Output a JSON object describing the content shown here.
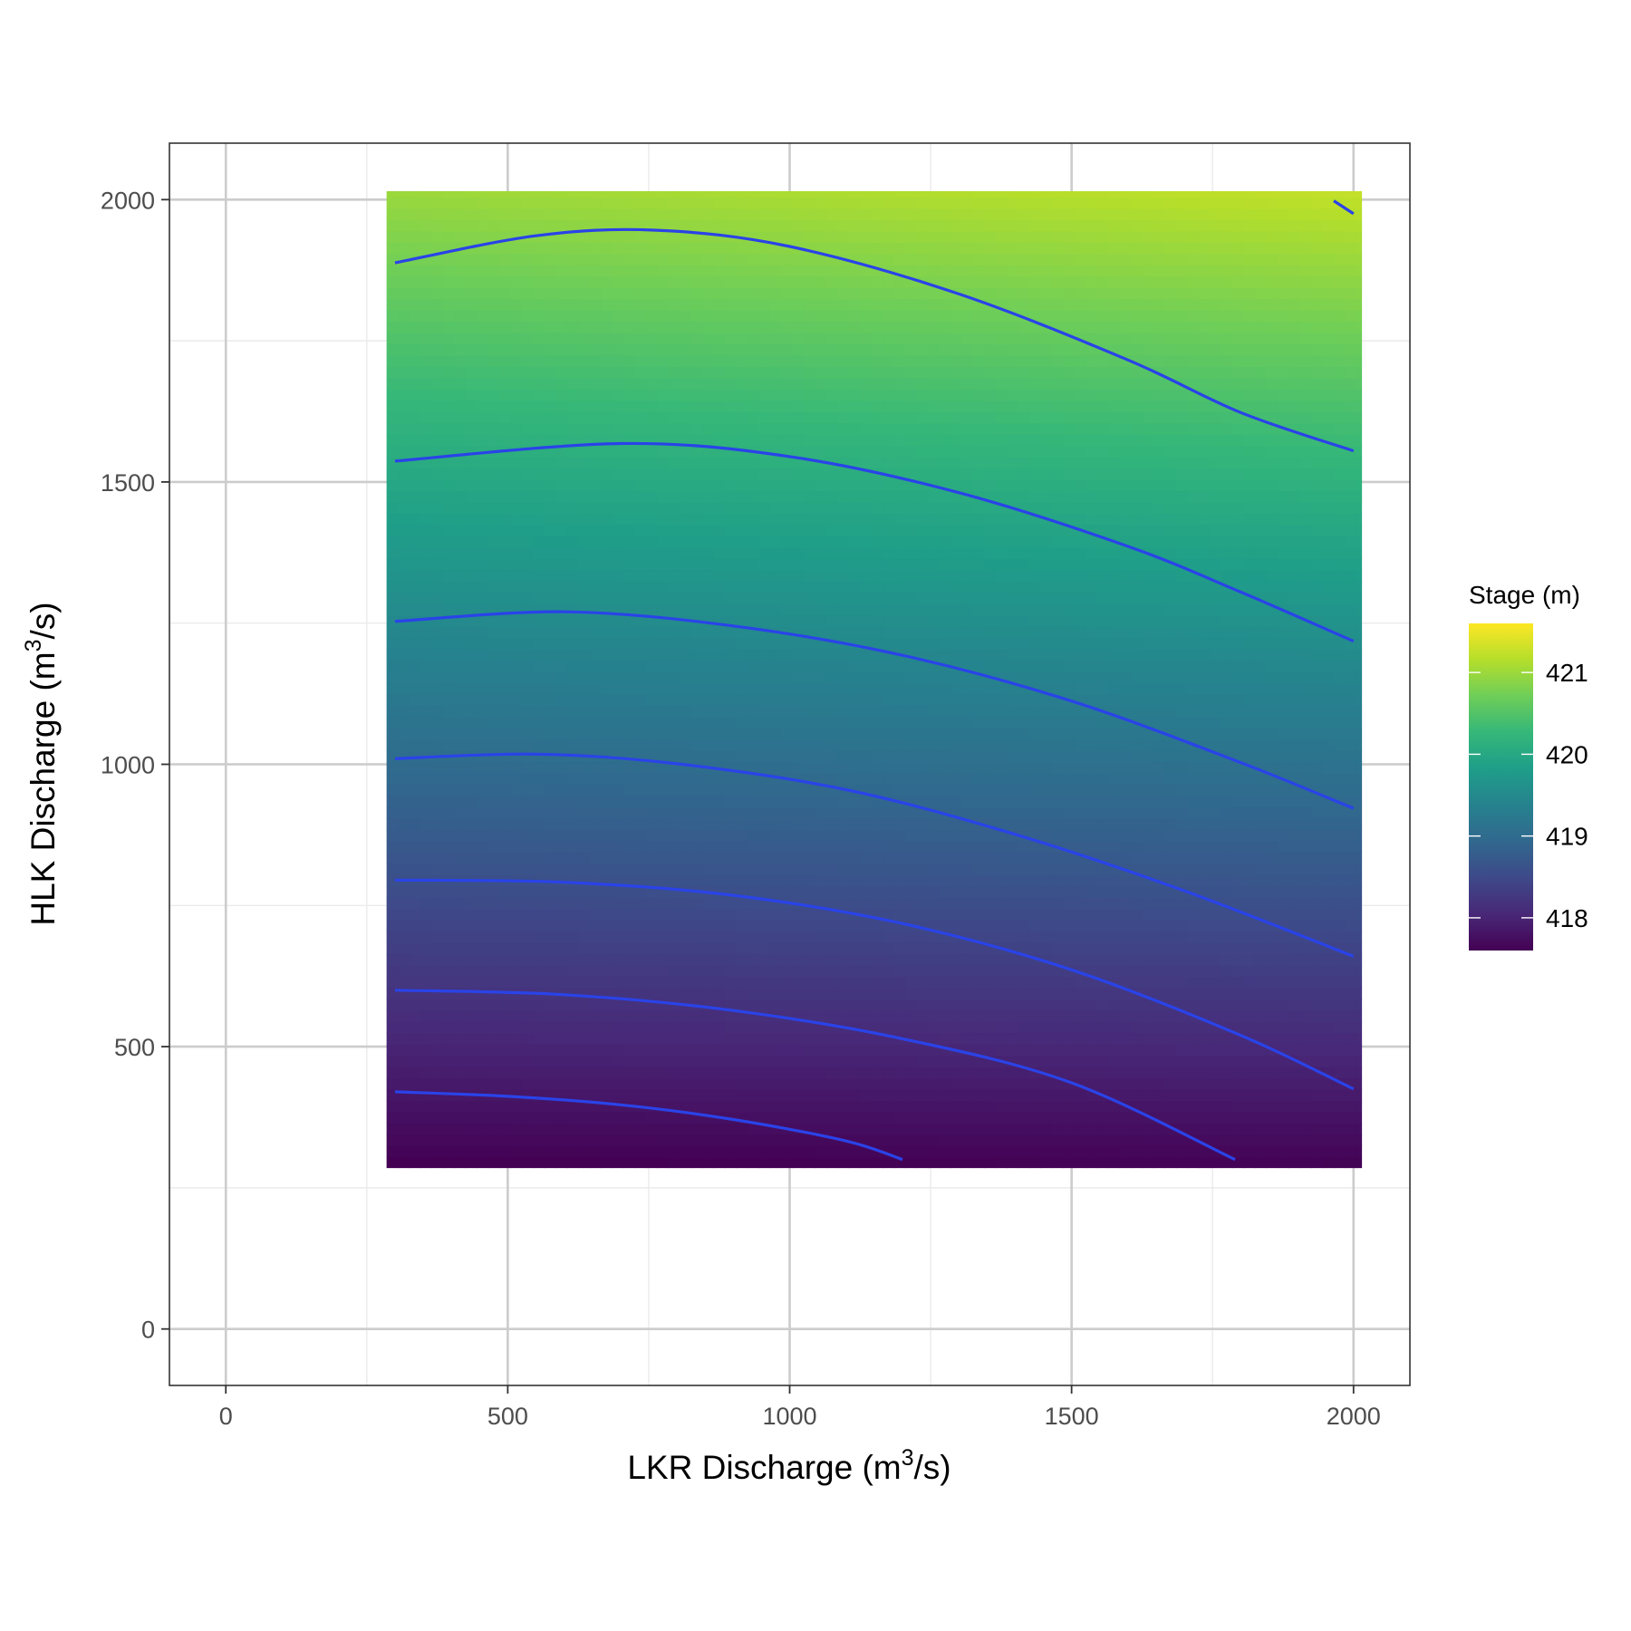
{
  "chart_data": {
    "type": "heatmap",
    "title": "",
    "xlabel": {
      "prefix": "LKR Discharge (m",
      "sup": "3",
      "suffix": "/s)"
    },
    "ylabel": {
      "prefix": "HLK Discharge (m",
      "sup": "3",
      "suffix": "/s)"
    },
    "xlim": [
      -100,
      2100
    ],
    "ylim": [
      -100,
      2100
    ],
    "x_ticks": [
      0,
      500,
      1000,
      1500,
      2000
    ],
    "y_ticks": [
      0,
      500,
      1000,
      1500,
      2000
    ],
    "x_tick_labels": [
      "0",
      "500",
      "1000",
      "1500",
      "2000"
    ],
    "y_tick_labels": [
      "0",
      "500",
      "1000",
      "1500",
      "2000"
    ],
    "grid": true,
    "raster_extent": {
      "x": [
        285,
        2015
      ],
      "y": [
        285,
        2015
      ]
    },
    "fill": {
      "variable": "Stage (m)",
      "palette": "viridis",
      "range": [
        417.6,
        421.6
      ],
      "model": "stage ≈ 417.6 + 0.00195·(HLK−300) + 0.000000075·LKR·(HLK−300) + small LKR term"
    },
    "contour_color": "#2a43e8",
    "contours": [
      {
        "points": [
          [
            300,
            420
          ],
          [
            500,
            412
          ],
          [
            700,
            397
          ],
          [
            900,
            371
          ],
          [
            1100,
            333
          ],
          [
            1200,
            300
          ]
        ]
      },
      {
        "points": [
          [
            300,
            600
          ],
          [
            600,
            592
          ],
          [
            900,
            564
          ],
          [
            1200,
            514
          ],
          [
            1500,
            436
          ],
          [
            1790,
            300
          ]
        ]
      },
      {
        "points": [
          [
            300,
            795
          ],
          [
            600,
            791
          ],
          [
            900,
            768
          ],
          [
            1200,
            718
          ],
          [
            1500,
            636
          ],
          [
            1800,
            520
          ],
          [
            2000,
            425
          ]
        ]
      },
      {
        "points": [
          [
            300,
            1010
          ],
          [
            550,
            1018
          ],
          [
            800,
            1001
          ],
          [
            1100,
            955
          ],
          [
            1400,
            876
          ],
          [
            1700,
            776
          ],
          [
            2000,
            660
          ]
        ]
      },
      {
        "points": [
          [
            300,
            1253
          ],
          [
            600,
            1270
          ],
          [
            900,
            1245
          ],
          [
            1200,
            1193
          ],
          [
            1500,
            1112
          ],
          [
            1800,
            1003
          ],
          [
            2000,
            922
          ]
        ]
      },
      {
        "points": [
          [
            300,
            1537
          ],
          [
            700,
            1568
          ],
          [
            1000,
            1545
          ],
          [
            1300,
            1481
          ],
          [
            1600,
            1386
          ],
          [
            1800,
            1305
          ],
          [
            2000,
            1218
          ]
        ]
      },
      {
        "points": [
          [
            300,
            1888
          ],
          [
            550,
            1936
          ],
          [
            760,
            1946
          ],
          [
            1000,
            1917
          ],
          [
            1300,
            1833
          ],
          [
            1600,
            1716
          ],
          [
            1800,
            1623
          ],
          [
            2000,
            1555
          ]
        ]
      },
      {
        "points": [
          [
            1965,
            1998
          ],
          [
            2000,
            1975
          ]
        ]
      }
    ],
    "legend": {
      "title": "Stage (m)",
      "position": "right",
      "breaks": [
        418,
        419,
        420,
        421
      ],
      "labels": [
        "418",
        "419",
        "420",
        "421"
      ]
    }
  }
}
